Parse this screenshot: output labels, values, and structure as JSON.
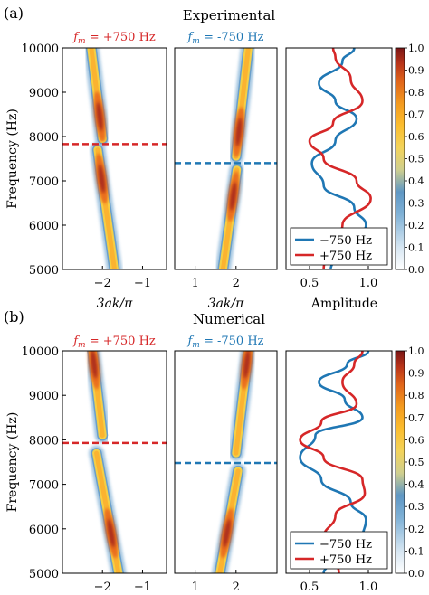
{
  "chart_data": [
    {
      "type": "heatmap",
      "label": "(a)",
      "title": "Experimental",
      "panels": [
        {
          "header_math": "f",
          "header_sub": "m",
          "header_value": " = +750 Hz",
          "header_color": "#d62728",
          "xlabel": "3ak/π",
          "xlim": [
            -3.0,
            -0.4
          ],
          "xticks": [
            -2,
            -1
          ],
          "xtick_labels": [
            "−2",
            "−1"
          ],
          "dashed_freq": 7830,
          "dashed_color": "#d62728",
          "ridges": [
            {
              "f0": 5000,
              "f1": 7700,
              "k0": -1.7,
              "k1": -2.12,
              "peak_f": 7050
            },
            {
              "f0": 7950,
              "f1": 10000,
              "k0": -2.0,
              "k1": -2.28,
              "peak_f": 8450
            }
          ]
        },
        {
          "header_math": "f",
          "header_sub": "m",
          "header_value": " = -750 Hz",
          "header_color": "#1f77b4",
          "xlabel": "",
          "xlim": [
            0.5,
            3.0
          ],
          "xticks": [
            1,
            2
          ],
          "xtick_labels": [
            "1",
            "2"
          ],
          "dashed_freq": 7400,
          "dashed_color": "#1f77b4",
          "ridges": [
            {
              "f0": 5000,
              "f1": 7250,
              "k0": 1.68,
              "k1": 2.02,
              "peak_f": 6650
            },
            {
              "f0": 7550,
              "f1": 10000,
              "k0": 2.0,
              "k1": 2.3,
              "peak_f": 8100
            }
          ]
        }
      ],
      "ylabel": "Frequency (Hz)",
      "ylim": [
        5000,
        10000
      ],
      "yticks": [
        5000,
        6000,
        7000,
        8000,
        9000,
        10000
      ],
      "amplitude": {
        "xlabel": "Amplitude",
        "xlim": [
          0.3,
          1.2
        ],
        "xticks": [
          0.5,
          1.0
        ],
        "xtick_labels": [
          "0.5",
          "1.0"
        ],
        "series": [
          {
            "name": "−750 Hz",
            "color": "#1f77b4",
            "points": [
              [
                0.68,
                5000
              ],
              [
                0.72,
                5300
              ],
              [
                0.85,
                5600
              ],
              [
                0.98,
                6000
              ],
              [
                0.88,
                6400
              ],
              [
                0.62,
                6900
              ],
              [
                0.52,
                7400
              ],
              [
                0.72,
                7900
              ],
              [
                0.9,
                8400
              ],
              [
                0.72,
                8800
              ],
              [
                0.58,
                9200
              ],
              [
                0.78,
                9700
              ],
              [
                0.88,
                10000
              ]
            ]
          },
          {
            "name": "+750 Hz",
            "color": "#d62728",
            "points": [
              [
                0.62,
                5000
              ],
              [
                0.66,
                5500
              ],
              [
                0.78,
                6000
              ],
              [
                1.02,
                6600
              ],
              [
                0.9,
                7000
              ],
              [
                0.62,
                7500
              ],
              [
                0.5,
                7900
              ],
              [
                0.7,
                8300
              ],
              [
                0.95,
                8800
              ],
              [
                0.85,
                9300
              ],
              [
                0.72,
                9800
              ],
              [
                0.7,
                10000
              ]
            ]
          }
        ]
      },
      "colorbar": {
        "ticks": [
          0.0,
          0.1,
          0.2,
          0.3,
          0.4,
          0.5,
          0.6,
          0.7,
          0.8,
          0.9,
          1.0
        ],
        "tick_labels": [
          "0.0",
          "0.1",
          "0.2",
          "0.3",
          "0.4",
          "0.5",
          "0.6",
          "0.7",
          "0.8",
          "0.9",
          "1.0"
        ]
      }
    },
    {
      "type": "heatmap",
      "label": "(b)",
      "title": "Numerical",
      "panels": [
        {
          "header_math": "f",
          "header_sub": "m",
          "header_value": " = +750 Hz",
          "header_color": "#d62728",
          "xlabel": "3ak/π",
          "xlim": [
            -3.0,
            -0.4
          ],
          "xticks": [
            -2,
            -1
          ],
          "xtick_labels": [
            "−2",
            "−1"
          ],
          "dashed_freq": 7930,
          "dashed_color": "#d62728",
          "ridges": [
            {
              "f0": 5000,
              "f1": 7700,
              "k0": -1.6,
              "k1": -2.15,
              "peak_f": 5900
            },
            {
              "f0": 8100,
              "f1": 10000,
              "k0": -2.0,
              "k1": -2.25,
              "peak_f": 9700
            }
          ]
        },
        {
          "header_math": "f",
          "header_sub": "m",
          "header_value": " = -750 Hz",
          "header_color": "#1f77b4",
          "xlabel": "",
          "xlim": [
            0.5,
            3.0
          ],
          "xticks": [
            1,
            2
          ],
          "xtick_labels": [
            "1",
            "2"
          ],
          "dashed_freq": 7480,
          "dashed_color": "#1f77b4",
          "ridges": [
            {
              "f0": 5000,
              "f1": 7300,
              "k0": 1.6,
              "k1": 2.05,
              "peak_f": 5900
            },
            {
              "f0": 7700,
              "f1": 10000,
              "k0": 2.0,
              "k1": 2.3,
              "peak_f": 9700
            }
          ]
        }
      ],
      "ylabel": "Frequency (Hz)",
      "ylim": [
        5000,
        10000
      ],
      "yticks": [
        5000,
        6000,
        7000,
        8000,
        9000,
        10000
      ],
      "amplitude": {
        "xlabel": "Amplitude",
        "xlim": [
          0.3,
          1.2
        ],
        "xticks": [
          0.5,
          1.0
        ],
        "xtick_labels": [
          "0.5",
          "1.0"
        ],
        "series": [
          {
            "name": "−750 Hz",
            "color": "#1f77b4",
            "points": [
              [
                0.62,
                5000
              ],
              [
                0.78,
                5400
              ],
              [
                0.95,
                5800
              ],
              [
                0.98,
                6200
              ],
              [
                0.85,
                6600
              ],
              [
                0.6,
                7100
              ],
              [
                0.42,
                7600
              ],
              [
                0.55,
                8100
              ],
              [
                0.95,
                8500
              ],
              [
                0.8,
                8900
              ],
              [
                0.58,
                9300
              ],
              [
                0.82,
                9700
              ],
              [
                1.0,
                10000
              ]
            ]
          },
          {
            "name": "+750 Hz",
            "color": "#d62728",
            "points": [
              [
                0.75,
                5000
              ],
              [
                0.7,
                5400
              ],
              [
                0.62,
                5800
              ],
              [
                0.72,
                6300
              ],
              [
                0.97,
                6800
              ],
              [
                0.95,
                7100
              ],
              [
                0.62,
                7600
              ],
              [
                0.42,
                8000
              ],
              [
                0.6,
                8400
              ],
              [
                0.9,
                8800
              ],
              [
                0.78,
                9300
              ],
              [
                0.88,
                9700
              ],
              [
                0.95,
                10000
              ]
            ]
          }
        ]
      },
      "colorbar": {
        "ticks": [
          0.0,
          0.1,
          0.2,
          0.3,
          0.4,
          0.5,
          0.6,
          0.7,
          0.8,
          0.9,
          1.0
        ],
        "tick_labels": [
          "0.0",
          "0.1",
          "0.2",
          "0.3",
          "0.4",
          "0.5",
          "0.6",
          "0.7",
          "0.8",
          "0.9",
          "1.0"
        ]
      }
    }
  ]
}
